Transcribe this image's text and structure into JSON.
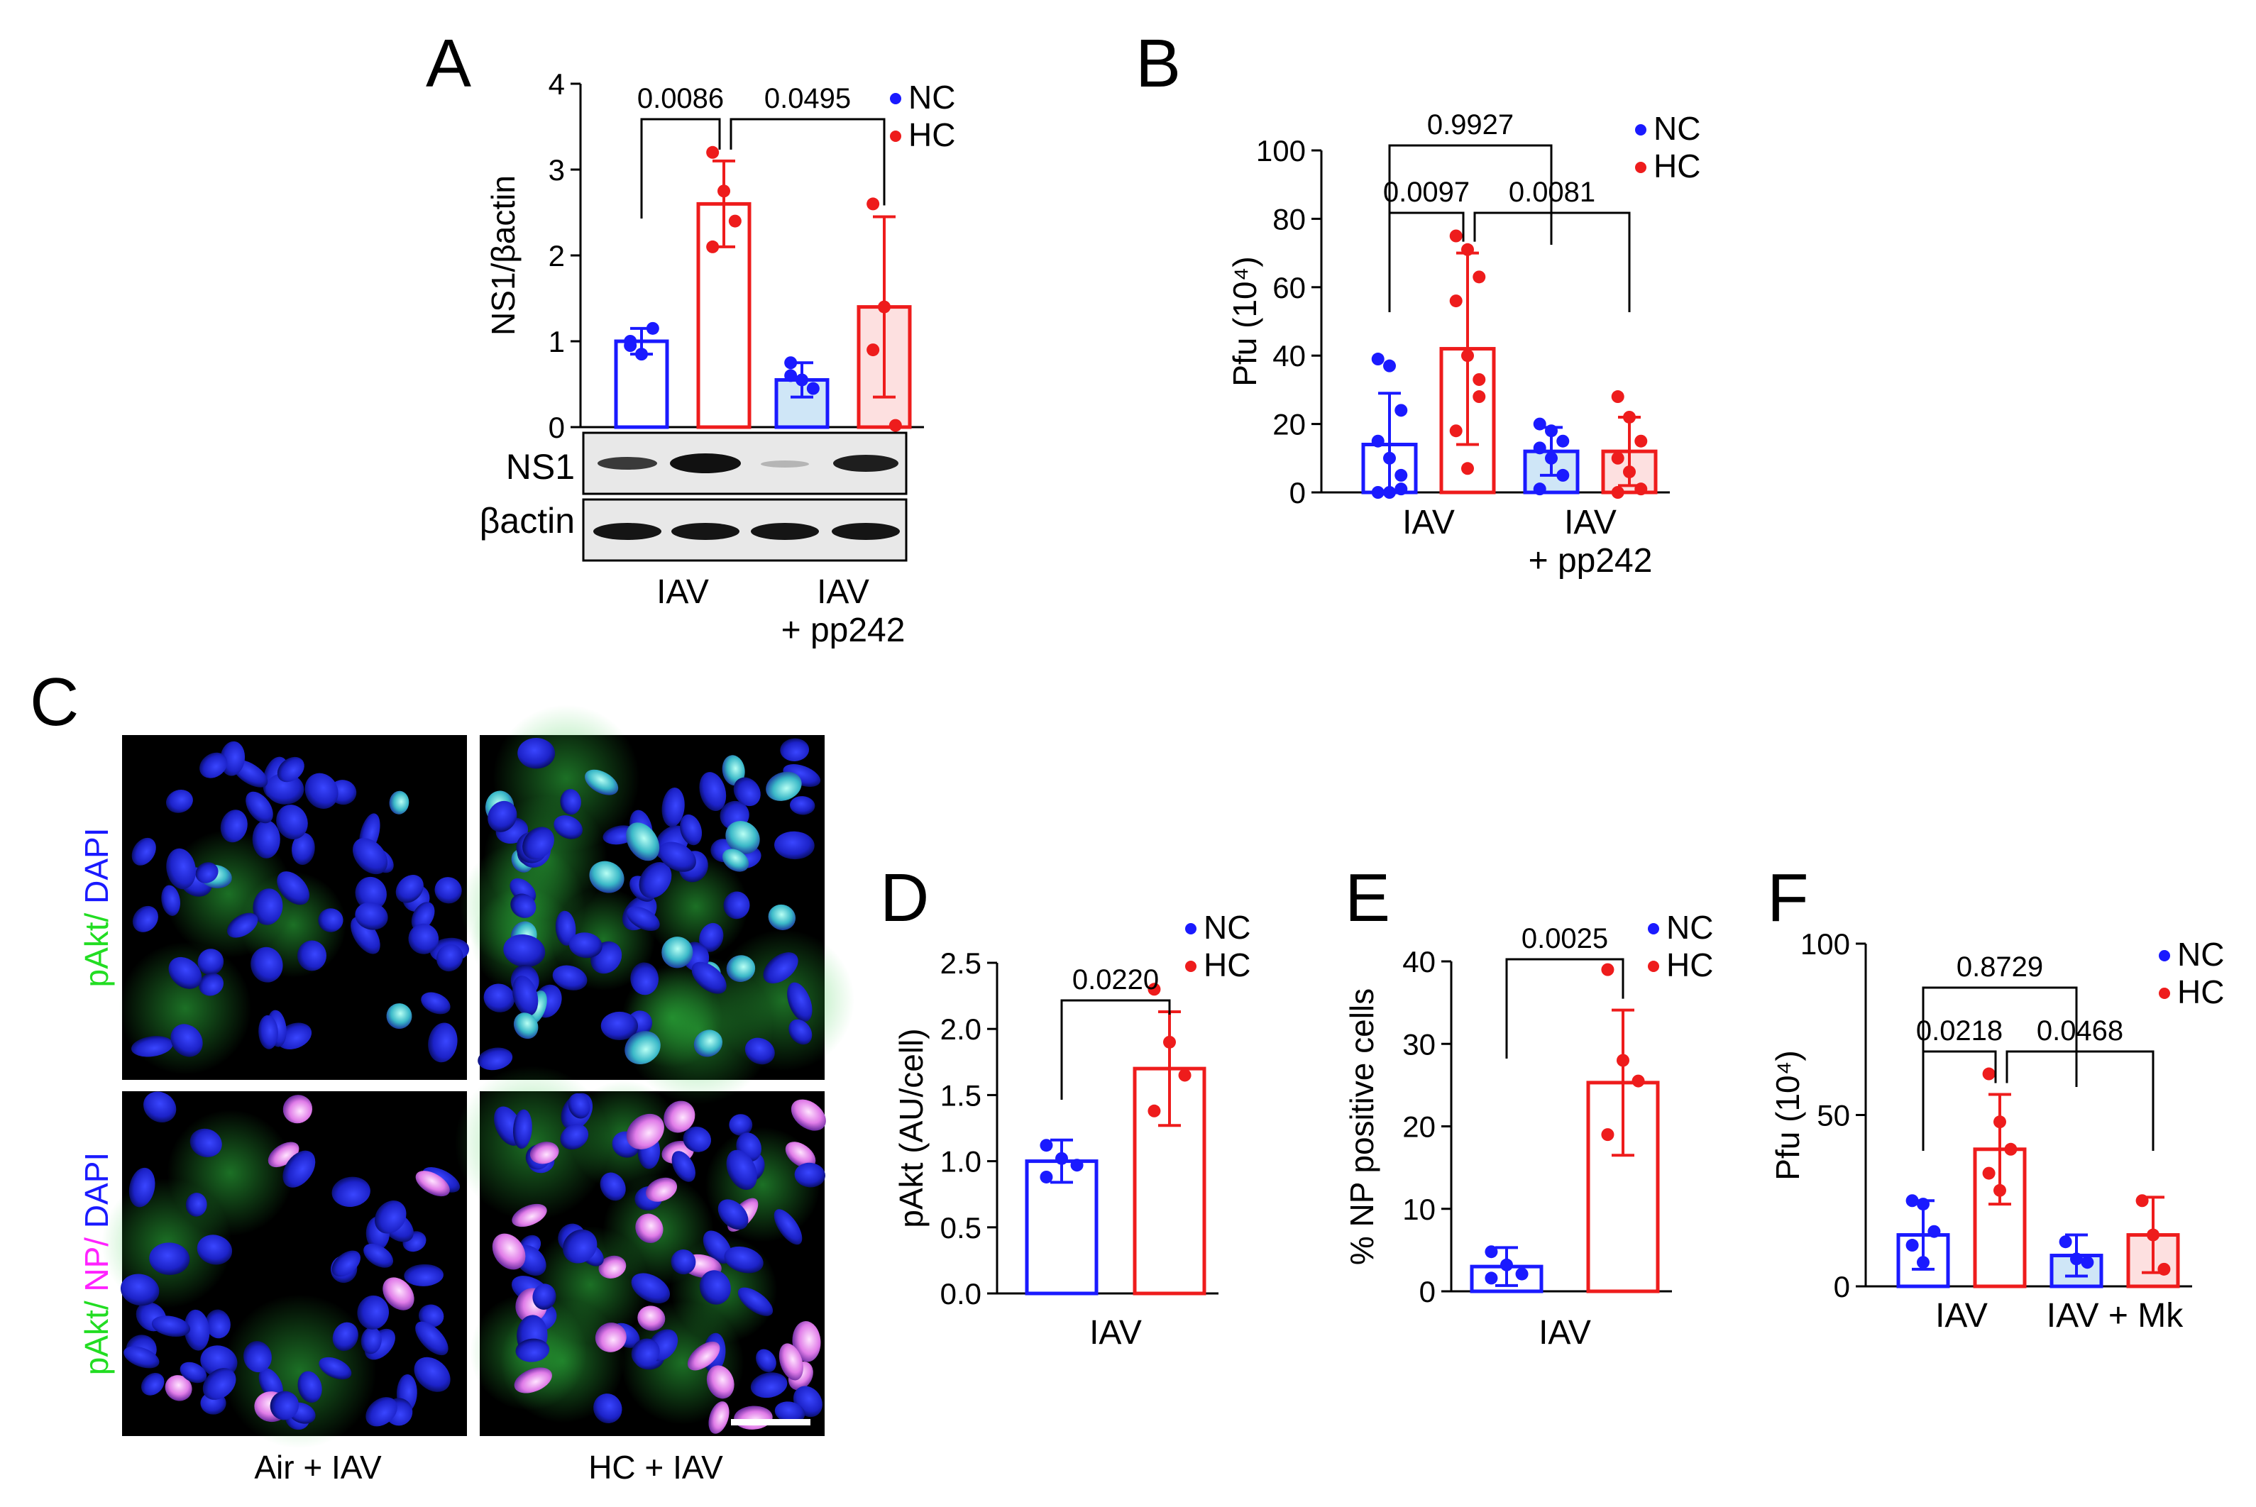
{
  "panel_labels": [
    "A",
    "B",
    "C",
    "D",
    "E",
    "F"
  ],
  "legend": {
    "nc": "NC",
    "hc": "HC"
  },
  "colors": {
    "nc": "#1a1aff",
    "hc": "#ee1c1c",
    "nc_fill": "#cfe6f7",
    "hc_fill": "#fde0e0",
    "axis": "#000000"
  },
  "chart_data": [
    {
      "panel": "A",
      "type": "bar",
      "ylabel": "NS1/βactin",
      "ylim": [
        0,
        4
      ],
      "yticks": [
        "0",
        "1",
        "2",
        "3",
        "4"
      ],
      "group_labels": [
        [
          "IAV"
        ],
        [
          "IAV",
          "+ pp242"
        ]
      ],
      "bars": [
        {
          "group": "NC",
          "treated": false,
          "mean": 1.0,
          "sd": 0.15,
          "points": [
            1.0,
            0.85,
            1.15,
            0.95
          ]
        },
        {
          "group": "HC",
          "treated": false,
          "mean": 2.6,
          "sd": 0.5,
          "points": [
            3.2,
            2.75,
            2.4,
            2.1
          ]
        },
        {
          "group": "NC",
          "treated": true,
          "mean": 0.55,
          "sd": 0.2,
          "points": [
            0.75,
            0.55,
            0.45,
            0.6
          ]
        },
        {
          "group": "HC",
          "treated": true,
          "mean": 1.4,
          "sd": 1.05,
          "points": [
            2.6,
            1.4,
            0.02,
            0.9
          ]
        }
      ],
      "comparisons": [
        {
          "from": 0,
          "to": 1,
          "label": "0.0086"
        },
        {
          "from": 1,
          "to": 3,
          "label": "0.0495"
        }
      ],
      "blot_labels": [
        "NS1",
        "βactin"
      ]
    },
    {
      "panel": "B",
      "type": "bar",
      "ylabel": "Pfu (10⁴)",
      "ylim": [
        0,
        100
      ],
      "yticks": [
        "0",
        "20",
        "40",
        "60",
        "80",
        "100"
      ],
      "group_labels": [
        [
          "IAV"
        ],
        [
          "IAV",
          "+ pp242"
        ]
      ],
      "bars": [
        {
          "group": "NC",
          "treated": false,
          "mean": 14,
          "sd": 15,
          "points": [
            39,
            37,
            24,
            15,
            10,
            5,
            0,
            0,
            1
          ]
        },
        {
          "group": "HC",
          "treated": false,
          "mean": 42,
          "sd": 28,
          "points": [
            75,
            71,
            63,
            56,
            40,
            28,
            18,
            7,
            33
          ]
        },
        {
          "group": "NC",
          "treated": true,
          "mean": 12,
          "sd": 7,
          "points": [
            20,
            18,
            15,
            13,
            10,
            5,
            1
          ]
        },
        {
          "group": "HC",
          "treated": true,
          "mean": 12,
          "sd": 10,
          "points": [
            28,
            22,
            15,
            10,
            6,
            1,
            0
          ]
        }
      ],
      "comparisons": [
        {
          "from": 0,
          "to": 1,
          "label": "0.0097"
        },
        {
          "from": 1,
          "to": 3,
          "label": "0.0081"
        },
        {
          "from": 0,
          "to": 2,
          "label": "0.9927"
        }
      ]
    },
    {
      "panel": "D",
      "type": "bar",
      "ylabel": "pAkt (AU/cell)",
      "ylim": [
        0,
        2.5
      ],
      "yticks": [
        "0.0",
        "0.5",
        "1.0",
        "1.5",
        "2.0",
        "2.5"
      ],
      "group_labels": [
        [
          "IAV"
        ]
      ],
      "bars": [
        {
          "group": "NC",
          "treated": false,
          "mean": 1.0,
          "sd": 0.16,
          "points": [
            1.12,
            1.02,
            0.97,
            0.88
          ]
        },
        {
          "group": "HC",
          "treated": false,
          "mean": 1.7,
          "sd": 0.43,
          "points": [
            2.3,
            1.9,
            1.65,
            1.38
          ]
        }
      ],
      "comparisons": [
        {
          "from": 0,
          "to": 1,
          "label": "0.0220"
        }
      ]
    },
    {
      "panel": "E",
      "type": "bar",
      "ylabel": "% NP positive cells",
      "ylim": [
        0,
        40
      ],
      "yticks": [
        "0",
        "10",
        "20",
        "30",
        "40"
      ],
      "group_labels": [
        [
          "IAV"
        ]
      ],
      "bars": [
        {
          "group": "NC",
          "treated": false,
          "mean": 3,
          "sd": 2.3,
          "points": [
            4.8,
            3.2,
            2.1,
            1.6
          ]
        },
        {
          "group": "HC",
          "treated": false,
          "mean": 25.3,
          "sd": 8.8,
          "points": [
            39,
            28,
            25.5,
            19
          ]
        }
      ],
      "comparisons": [
        {
          "from": 0,
          "to": 1,
          "label": "0.0025"
        }
      ]
    },
    {
      "panel": "F",
      "type": "bar",
      "ylabel": "Pfu (10⁴)",
      "ylim": [
        0,
        100
      ],
      "yticks": [
        "0",
        "50",
        "100"
      ],
      "group_labels": [
        [
          "IAV"
        ],
        [
          "IAV + Mk"
        ]
      ],
      "bars": [
        {
          "group": "NC",
          "treated": false,
          "mean": 15,
          "sd": 10,
          "points": [
            25,
            24,
            16,
            12,
            7
          ]
        },
        {
          "group": "HC",
          "treated": false,
          "mean": 40,
          "sd": 16,
          "points": [
            62,
            48,
            40,
            33,
            28
          ]
        },
        {
          "group": "NC",
          "treated": true,
          "mean": 9,
          "sd": 6,
          "points": [
            13,
            8,
            7
          ]
        },
        {
          "group": "HC",
          "treated": true,
          "mean": 15,
          "sd": 11,
          "points": [
            25,
            15,
            5
          ]
        }
      ],
      "comparisons": [
        {
          "from": 0,
          "to": 1,
          "label": "0.0218"
        },
        {
          "from": 1,
          "to": 3,
          "label": "0.0468"
        },
        {
          "from": 0,
          "to": 2,
          "label": "0.8729"
        }
      ]
    }
  ],
  "micrograph": {
    "row_labels": [
      [
        {
          "text": "pAkt/",
          "color": "green"
        },
        {
          "text": " DAPI",
          "color": "blue"
        }
      ],
      [
        {
          "text": "pAkt/",
          "color": "green"
        },
        {
          "text": " NP/",
          "color": "magenta"
        },
        {
          "text": " DAPI",
          "color": "blue"
        }
      ]
    ],
    "column_labels": [
      "Air + IAV",
      "HC + IAV"
    ],
    "label_colors": {
      "green": "#22dd22",
      "blue": "#1a1aff",
      "magenta": "#ff22ff"
    }
  }
}
